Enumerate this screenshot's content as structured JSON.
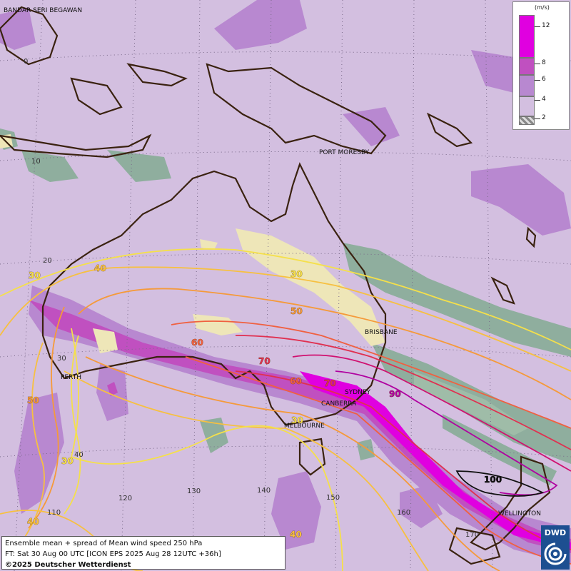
{
  "legend": {
    "unit": "(m/s)",
    "ticks": [
      "12",
      "8",
      "6",
      "4",
      "2"
    ],
    "colors": {
      "12": "#e000e0",
      "8": "#c050c0",
      "6": "#b888d0",
      "4": "#d3bfe0",
      "2": "#888888"
    }
  },
  "info": {
    "line1": "Ensemble mean + spread of Mean wind speed 250 hPa",
    "line2": "FT: Sat 30 Aug 00 UTC [ICON EPS 2025 Aug 28 12UTC +36h]",
    "copyright": "©2025 Deutscher Wetterdienst"
  },
  "logo": {
    "text": "DWD"
  },
  "cities": {
    "bandar": "BANDAR SERI BEGAWAN",
    "port_moresby": "PORT MORESBY",
    "brisbane": "BRISBANE",
    "perth": "PERTH",
    "sydney": "SYDNEY",
    "canberra": "CANBERRA",
    "melbourne": "MELBOURNE",
    "wellington": "WELLINGTON"
  },
  "grid_labels": {
    "lat0": "0",
    "lat10": "10",
    "lat20": "20",
    "lat30": "30",
    "lat40": "40",
    "lon110": "110",
    "lon120": "120",
    "lon130": "130",
    "lon140": "140",
    "lon150": "150",
    "lon160": "160",
    "lon170": "170"
  },
  "contour_labels": {
    "c30a": "30",
    "c40a": "40",
    "c30b": "30",
    "c50a": "50",
    "c60a": "60",
    "c70a": "70",
    "c60b": "60",
    "c70b": "70",
    "c90": "90",
    "c50b": "50",
    "c30c": "30",
    "c40b": "40",
    "c30d": "30",
    "c40c": "40",
    "c100": "100"
  },
  "contour_colors": {
    "30": "#f5e04a",
    "40": "#f7c040",
    "50": "#f59a3a",
    "60": "#f06040",
    "70": "#e03050",
    "80": "#d01070",
    "90": "#b000a0",
    "100": "#111111"
  }
}
